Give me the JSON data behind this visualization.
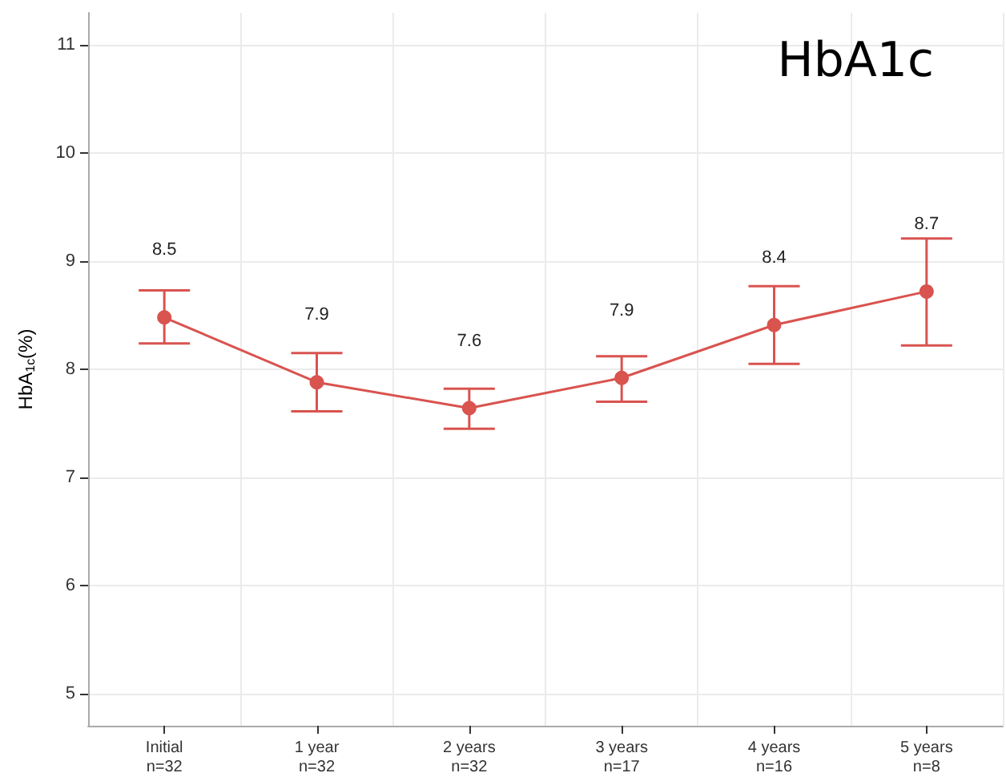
{
  "chart_data": {
    "type": "line",
    "title": "HbA1c",
    "ylabel": "HbA$_{1c}$(%)",
    "categories": [
      "Initial\nn=32",
      "1 year\nn=32",
      "2 years\nn=32",
      "3 years\nn=17",
      "4 years\nn=16",
      "5 years\nn=8"
    ],
    "series": [
      {
        "color": "#d9534f",
        "values": [
          8.48,
          7.88,
          7.64,
          7.92,
          8.41,
          8.72
        ],
        "errors": [
          [
            8.24,
            8.73
          ],
          [
            7.61,
            8.15
          ],
          [
            7.45,
            7.82
          ],
          [
            7.7,
            8.12
          ],
          [
            8.05,
            8.77
          ],
          [
            8.22,
            9.21
          ]
        ],
        "value_labels": [
          "8.5",
          "7.9",
          "7.6",
          "7.9",
          "8.4",
          "8.7"
        ]
      }
    ],
    "ylim": [
      4.7,
      11.3
    ],
    "yticks": [
      5,
      6,
      7,
      8,
      9,
      10,
      11
    ],
    "grid": true,
    "marker": "circle",
    "line_style": "solid"
  }
}
